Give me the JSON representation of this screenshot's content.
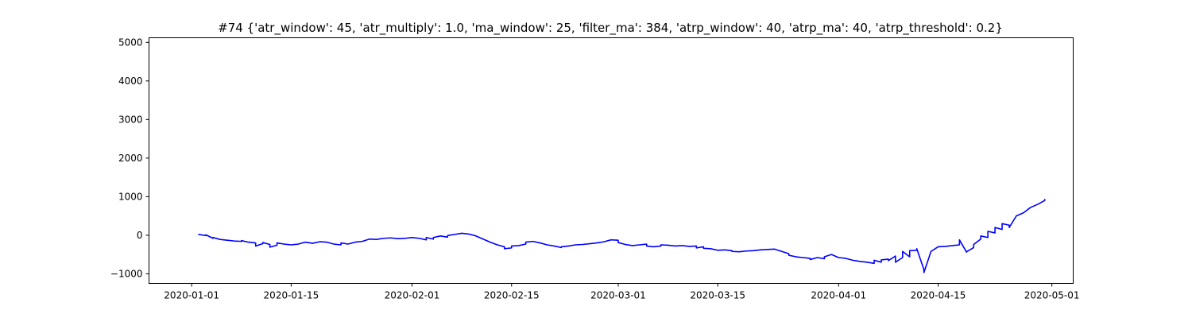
{
  "chart_data": {
    "type": "line",
    "title": "#74 {'atr_window': 45, 'atr_multiply': 1.0, 'ma_window': 25, 'filter_ma': 384, 'atrp_window': 40, 'atrp_ma': 40, 'atrp_threshold': 0.2}",
    "xlabel": "",
    "ylabel": "",
    "x_type": "date",
    "xlim": [
      "2019-12-26",
      "2020-05-04"
    ],
    "ylim": [
      -1250,
      5120
    ],
    "x_ticks": [
      "2020-01-01",
      "2020-01-15",
      "2020-02-01",
      "2020-02-15",
      "2020-03-01",
      "2020-03-15",
      "2020-04-01",
      "2020-04-15",
      "2020-05-01"
    ],
    "y_ticks": [
      -1000,
      0,
      1000,
      2000,
      3000,
      4000,
      5000
    ],
    "grid": false,
    "legend": "none",
    "series": [
      {
        "color": "#0000ff",
        "points": [
          [
            "2020-01-02",
            0
          ],
          [
            "2020-01-02",
            20
          ],
          [
            "2020-01-03",
            -10
          ],
          [
            "2020-01-03",
            10
          ],
          [
            "2020-01-04",
            -80
          ],
          [
            "2020-01-04",
            -60
          ],
          [
            "2020-01-05",
            -110
          ],
          [
            "2020-01-06",
            -130
          ],
          [
            "2020-01-07",
            -150
          ],
          [
            "2020-01-08",
            -160
          ],
          [
            "2020-01-08",
            -140
          ],
          [
            "2020-01-09",
            -180
          ],
          [
            "2020-01-10",
            -200
          ],
          [
            "2020-01-10",
            -280
          ],
          [
            "2020-01-11",
            -220
          ],
          [
            "2020-01-11",
            -190
          ],
          [
            "2020-01-12",
            -240
          ],
          [
            "2020-01-12",
            -310
          ],
          [
            "2020-01-13",
            -260
          ],
          [
            "2020-01-13",
            -200
          ],
          [
            "2020-01-14",
            -230
          ],
          [
            "2020-01-15",
            -250
          ],
          [
            "2020-01-16",
            -230
          ],
          [
            "2020-01-17",
            -180
          ],
          [
            "2020-01-18",
            -210
          ],
          [
            "2020-01-19",
            -170
          ],
          [
            "2020-01-20",
            -180
          ],
          [
            "2020-01-21",
            -230
          ],
          [
            "2020-01-22",
            -250
          ],
          [
            "2020-01-22",
            -200
          ],
          [
            "2020-01-23",
            -230
          ],
          [
            "2020-01-24",
            -180
          ],
          [
            "2020-01-25",
            -160
          ],
          [
            "2020-01-26",
            -100
          ],
          [
            "2020-01-27",
            -110
          ],
          [
            "2020-01-28",
            -80
          ],
          [
            "2020-01-29",
            -70
          ],
          [
            "2020-01-30",
            -90
          ],
          [
            "2020-01-31",
            -80
          ],
          [
            "2020-02-01",
            -60
          ],
          [
            "2020-02-02",
            -80
          ],
          [
            "2020-02-03",
            -120
          ],
          [
            "2020-02-03",
            -60
          ],
          [
            "2020-02-04",
            -100
          ],
          [
            "2020-02-04",
            -60
          ],
          [
            "2020-02-05",
            -20
          ],
          [
            "2020-02-06",
            -50
          ],
          [
            "2020-02-06",
            -10
          ],
          [
            "2020-02-07",
            20
          ],
          [
            "2020-02-08",
            50
          ],
          [
            "2020-02-09",
            30
          ],
          [
            "2020-02-10",
            -20
          ],
          [
            "2020-02-11",
            -100
          ],
          [
            "2020-02-12",
            -180
          ],
          [
            "2020-02-13",
            -250
          ],
          [
            "2020-02-14",
            -300
          ],
          [
            "2020-02-14",
            -350
          ],
          [
            "2020-02-15",
            -330
          ],
          [
            "2020-02-15",
            -280
          ],
          [
            "2020-02-16",
            -270
          ],
          [
            "2020-02-17",
            -230
          ],
          [
            "2020-02-17",
            -180
          ],
          [
            "2020-02-18",
            -160
          ],
          [
            "2020-02-19",
            -200
          ],
          [
            "2020-02-20",
            -250
          ],
          [
            "2020-02-21",
            -280
          ],
          [
            "2020-02-22",
            -320
          ],
          [
            "2020-02-22",
            -300
          ],
          [
            "2020-02-23",
            -280
          ],
          [
            "2020-02-24",
            -250
          ],
          [
            "2020-02-25",
            -240
          ],
          [
            "2020-02-26",
            -220
          ],
          [
            "2020-02-27",
            -200
          ],
          [
            "2020-02-28",
            -170
          ],
          [
            "2020-02-29",
            -120
          ],
          [
            "2020-03-01",
            -130
          ],
          [
            "2020-03-01",
            -190
          ],
          [
            "2020-03-02",
            -240
          ],
          [
            "2020-03-03",
            -270
          ],
          [
            "2020-03-04",
            -250
          ],
          [
            "2020-03-05",
            -230
          ],
          [
            "2020-03-05",
            -280
          ],
          [
            "2020-03-06",
            -300
          ],
          [
            "2020-03-07",
            -280
          ],
          [
            "2020-03-07",
            -250
          ],
          [
            "2020-03-08",
            -260
          ],
          [
            "2020-03-09",
            -280
          ],
          [
            "2020-03-10",
            -270
          ],
          [
            "2020-03-11",
            -290
          ],
          [
            "2020-03-12",
            -280
          ],
          [
            "2020-03-12",
            -330
          ],
          [
            "2020-03-13",
            -300
          ],
          [
            "2020-03-13",
            -340
          ],
          [
            "2020-03-14",
            -350
          ],
          [
            "2020-03-15",
            -390
          ],
          [
            "2020-03-16",
            -380
          ],
          [
            "2020-03-17",
            -400
          ],
          [
            "2020-03-17",
            -420
          ],
          [
            "2020-03-18",
            -430
          ],
          [
            "2020-03-19",
            -410
          ],
          [
            "2020-03-20",
            -400
          ],
          [
            "2020-03-21",
            -380
          ],
          [
            "2020-03-22",
            -370
          ],
          [
            "2020-03-23",
            -360
          ],
          [
            "2020-03-24",
            -420
          ],
          [
            "2020-03-25",
            -480
          ],
          [
            "2020-03-25",
            -520
          ],
          [
            "2020-03-26",
            -560
          ],
          [
            "2020-03-27",
            -580
          ],
          [
            "2020-03-28",
            -600
          ],
          [
            "2020-03-28",
            -630
          ],
          [
            "2020-03-29",
            -580
          ],
          [
            "2020-03-30",
            -610
          ],
          [
            "2020-03-30",
            -560
          ],
          [
            "2020-03-31",
            -500
          ],
          [
            "2020-04-01",
            -580
          ],
          [
            "2020-04-02",
            -600
          ],
          [
            "2020-04-03",
            -650
          ],
          [
            "2020-04-04",
            -680
          ],
          [
            "2020-04-05",
            -700
          ],
          [
            "2020-04-06",
            -730
          ],
          [
            "2020-04-06",
            -650
          ],
          [
            "2020-04-07",
            -700
          ],
          [
            "2020-04-07",
            -640
          ],
          [
            "2020-04-08",
            -620
          ],
          [
            "2020-04-08",
            -660
          ],
          [
            "2020-04-09",
            -540
          ],
          [
            "2020-04-09",
            -700
          ],
          [
            "2020-04-10",
            -580
          ],
          [
            "2020-04-10",
            -420
          ],
          [
            "2020-04-11",
            -560
          ],
          [
            "2020-04-11",
            -400
          ],
          [
            "2020-04-12",
            -390
          ],
          [
            "2020-04-12",
            -350
          ],
          [
            "2020-04-13",
            -890
          ],
          [
            "2020-04-13",
            -970
          ],
          [
            "2020-04-14",
            -420
          ],
          [
            "2020-04-15",
            -300
          ],
          [
            "2020-04-16",
            -290
          ],
          [
            "2020-04-17",
            -270
          ],
          [
            "2020-04-18",
            -250
          ],
          [
            "2020-04-18",
            -120
          ],
          [
            "2020-04-19",
            -440
          ],
          [
            "2020-04-19",
            -430
          ],
          [
            "2020-04-20",
            -320
          ],
          [
            "2020-04-20",
            -240
          ],
          [
            "2020-04-21",
            -100
          ],
          [
            "2020-04-21",
            -20
          ],
          [
            "2020-04-22",
            -60
          ],
          [
            "2020-04-22",
            100
          ],
          [
            "2020-04-23",
            60
          ],
          [
            "2020-04-23",
            200
          ],
          [
            "2020-04-24",
            150
          ],
          [
            "2020-04-24",
            300
          ],
          [
            "2020-04-25",
            260
          ],
          [
            "2020-04-25",
            200
          ],
          [
            "2020-04-26",
            500
          ],
          [
            "2020-04-27",
            580
          ],
          [
            "2020-04-28",
            720
          ],
          [
            "2020-04-29",
            800
          ],
          [
            "2020-04-30",
            900
          ],
          [
            "2020-04-30",
            940
          ]
        ]
      }
    ]
  }
}
